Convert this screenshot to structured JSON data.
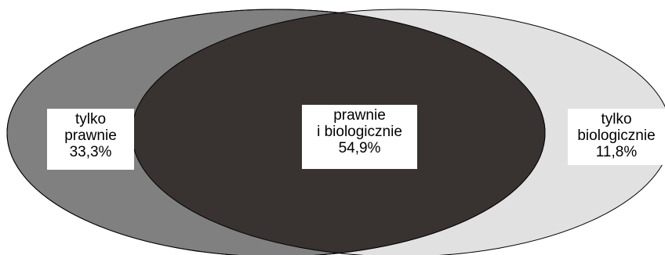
{
  "colors": {
    "left_region": "#808080",
    "right_region": "#e1e1e1",
    "overlap_region": "#383230",
    "outline": "#000000",
    "label_background": "#ffffff"
  },
  "regions": {
    "left": {
      "line1": "tylko",
      "line2": "prawnie",
      "value": "33,3%"
    },
    "center": {
      "line1": "prawnie",
      "line2": "i biologicznie",
      "value": "54,9%"
    },
    "right": {
      "line1": "tylko",
      "line2": "biologicznie",
      "value": "11,8%"
    }
  }
}
